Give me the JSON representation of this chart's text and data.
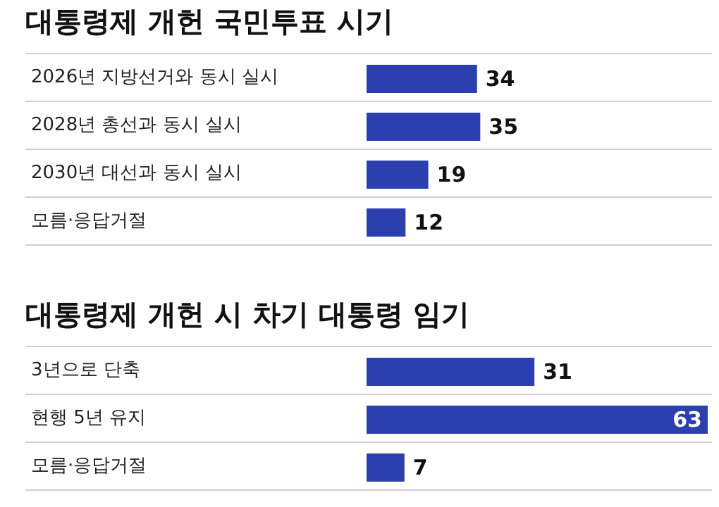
{
  "chart_data": [
    {
      "type": "bar",
      "orientation": "horizontal",
      "title": "대통령제 개헌 국민투표 시기",
      "categories": [
        "2026년 지방선거와 동시 실시",
        "2028년 총선과 동시 실시",
        "2030년 대선과 동시 실시",
        "모름·응답거절"
      ],
      "values": [
        34,
        35,
        19,
        12
      ],
      "color": "#2b3fae",
      "xlim": [
        0,
        105
      ],
      "data_labels": true,
      "tick_labels": "y"
    },
    {
      "type": "bar",
      "orientation": "horizontal",
      "title": "대통령제 개헌 시 차기 대통령 임기",
      "categories": [
        "3년으로 단축",
        "현행 5년 유지",
        "모름·응답거절"
      ],
      "values": [
        31,
        63,
        7
      ],
      "color": "#2b3fae",
      "xlim": [
        0,
        63
      ],
      "data_labels": true,
      "tick_labels": "y"
    }
  ]
}
